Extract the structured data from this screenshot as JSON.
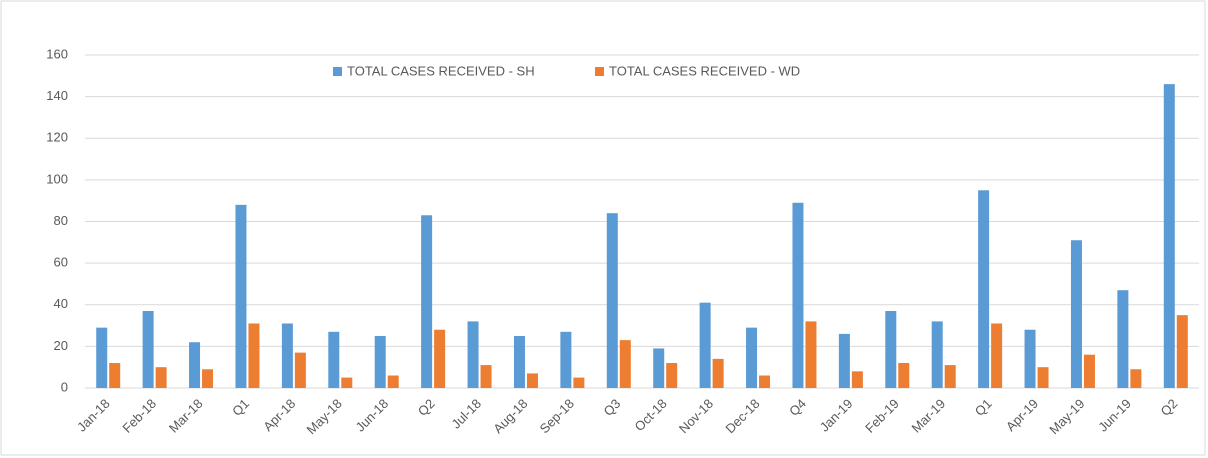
{
  "chart_data": {
    "type": "bar",
    "categories": [
      "Jan-18",
      "Feb-18",
      "Mar-18",
      "Q1",
      "Apr-18",
      "May-18",
      "Jun-18",
      "Q2",
      "Jul-18",
      "Aug-18",
      "Sep-18",
      "Q3",
      "Oct-18",
      "Nov-18",
      "Dec-18",
      "Q4",
      "Jan-19",
      "Feb-19",
      "Mar-19",
      "Q1",
      "Apr-19",
      "May-19",
      "Jun-19",
      "Q2"
    ],
    "series": [
      {
        "name": "TOTAL CASES RECEIVED - SH",
        "color": "#5b9bd5",
        "values": [
          29,
          37,
          22,
          88,
          31,
          27,
          25,
          83,
          32,
          25,
          27,
          84,
          19,
          41,
          29,
          89,
          26,
          37,
          32,
          95,
          28,
          71,
          47,
          146
        ]
      },
      {
        "name": "TOTAL CASES RECEIVED - WD",
        "color": "#ed7d31",
        "values": [
          12,
          10,
          9,
          31,
          17,
          5,
          6,
          28,
          11,
          7,
          5,
          23,
          12,
          14,
          6,
          32,
          8,
          12,
          11,
          31,
          10,
          16,
          9,
          35
        ]
      }
    ],
    "ylim": [
      0,
      160
    ],
    "yticks": [
      0,
      20,
      40,
      60,
      80,
      100,
      120,
      140,
      160
    ],
    "grid": true,
    "legend": "top"
  }
}
